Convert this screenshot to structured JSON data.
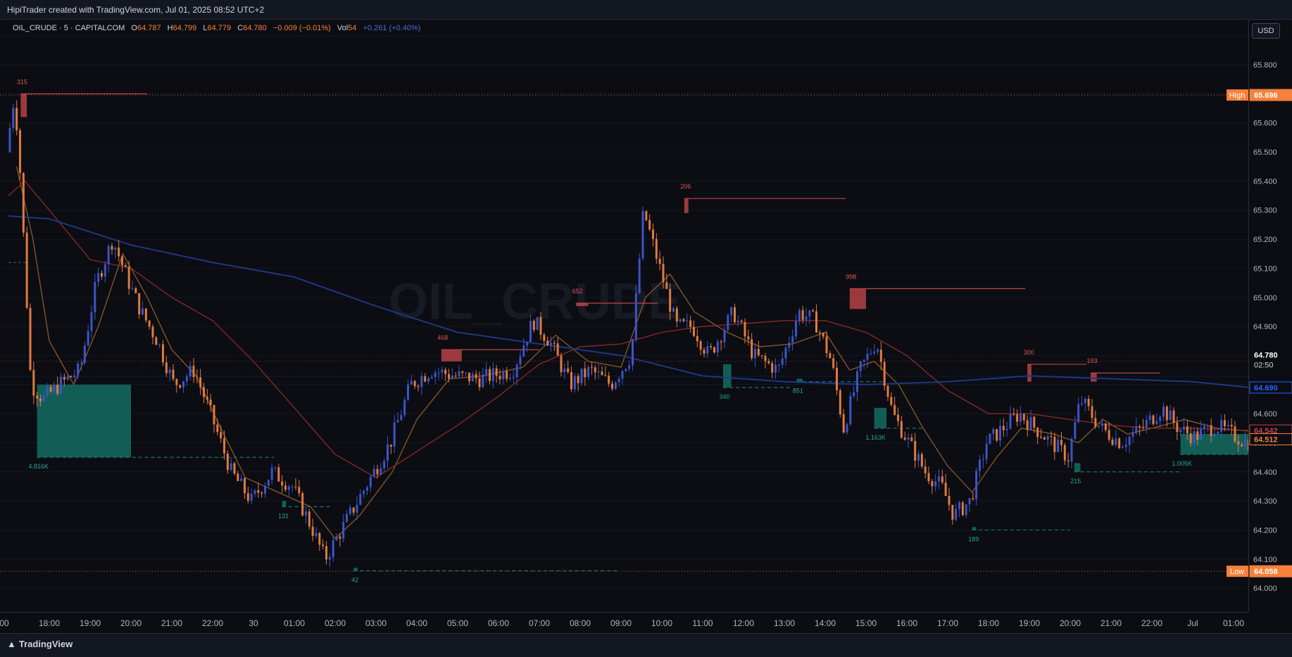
{
  "header": {
    "caption": "HipiTrader created with TradingView.com, Jul 01, 2025 08:52 UTC+2"
  },
  "legend": {
    "symbol": "OIL_CRUDE · 5 · CAPITALCOM",
    "open_label": "O",
    "open": "64.787",
    "high_label": "H",
    "high": "64.799",
    "low_label": "L",
    "low": "64.779",
    "close_label": "C",
    "close": "64.780",
    "change": "−0.009 (−0.01%)",
    "vol_label": "Vol",
    "vol": "54",
    "extra": "+0.261 (+0.40%)"
  },
  "watermark": "OIL_CRUDE",
  "currency_button": "USD",
  "footer": {
    "brand": "TradingView"
  },
  "colors": {
    "background": "#0b0d12",
    "bull": "#3c54c8",
    "bear": "#e07a3e",
    "ema_fast": "#8a5a2b",
    "ema_mid": "#8b2a2a",
    "ema_slow": "#1f3a8a",
    "supply": "#c0454a",
    "demand": "#157a6e",
    "high_low_badge": "#f7803a"
  },
  "chart_data": {
    "type": "candlestick",
    "symbol": "OIL_CRUDE",
    "timeframe": "5",
    "ylim": [
      63.918,
      65.955
    ],
    "y_ticks": [
      65.9,
      65.8,
      65.7,
      65.6,
      65.5,
      65.4,
      65.3,
      65.2,
      65.1,
      65.0,
      64.9,
      64.8,
      64.7,
      64.6,
      64.5,
      64.4,
      64.3,
      64.2,
      64.1,
      64.0
    ],
    "y_tick_labels": [
      "65.900",
      "65.800",
      "65.700",
      "65.600",
      "65.500",
      "65.400",
      "65.300",
      "65.200",
      "65.100",
      "65.000",
      "64.900",
      "64.800",
      "64.700",
      "64.600",
      "64.500",
      "64.400",
      "64.300",
      "64.200",
      "64.100",
      "64.000"
    ],
    "time_ticks": [
      {
        "label": "18:00",
        "at": 1
      },
      {
        "label": "19:00",
        "at": 2
      },
      {
        "label": "20:00",
        "at": 3
      },
      {
        "label": "21:00",
        "at": 4
      },
      {
        "label": "22:00",
        "at": 5
      },
      {
        "label": "30",
        "at": 6
      },
      {
        "label": "01:00",
        "at": 7
      },
      {
        "label": "02:00",
        "at": 8
      },
      {
        "label": "03:00",
        "at": 9
      },
      {
        "label": "04:00",
        "at": 10
      },
      {
        "label": "05:00",
        "at": 11
      },
      {
        "label": "06:00",
        "at": 12
      },
      {
        "label": "07:00",
        "at": 13
      },
      {
        "label": "08:00",
        "at": 14
      },
      {
        "label": "09:00",
        "at": 15
      },
      {
        "label": "10:00",
        "at": 16
      },
      {
        "label": "11:00",
        "at": 17
      },
      {
        "label": "12:00",
        "at": 18
      },
      {
        "label": "13:00",
        "at": 19
      },
      {
        "label": "14:00",
        "at": 20
      },
      {
        "label": "15:00",
        "at": 21
      },
      {
        "label": "16:00",
        "at": 22
      },
      {
        "label": "17:00",
        "at": 23
      },
      {
        "label": "18:00",
        "at": 24
      },
      {
        "label": "19:00",
        "at": 25
      },
      {
        "label": "20:00",
        "at": 26
      },
      {
        "label": "21:00",
        "at": 27
      },
      {
        "label": "22:00",
        "at": 28
      },
      {
        "label": "Jul",
        "at": 29
      },
      {
        "label": "01:00",
        "at": 30
      }
    ],
    "time_axis_partial_label": ":00",
    "price_path": [
      [
        0.0,
        65.5
      ],
      [
        0.2,
        65.7
      ],
      [
        0.35,
        65.4
      ],
      [
        0.6,
        64.7
      ],
      [
        0.9,
        64.65
      ],
      [
        1.3,
        64.7
      ],
      [
        1.8,
        64.75
      ],
      [
        2.2,
        65.05
      ],
      [
        2.6,
        65.2
      ],
      [
        3.0,
        65.05
      ],
      [
        3.3,
        64.95
      ],
      [
        3.7,
        64.85
      ],
      [
        4.1,
        64.7
      ],
      [
        4.6,
        64.75
      ],
      [
        5.0,
        64.6
      ],
      [
        5.5,
        64.4
      ],
      [
        6.0,
        64.3
      ],
      [
        6.5,
        64.4
      ],
      [
        7.0,
        64.35
      ],
      [
        7.5,
        64.2
      ],
      [
        7.8,
        64.1
      ],
      [
        8.2,
        64.2
      ],
      [
        8.8,
        64.35
      ],
      [
        9.4,
        64.5
      ],
      [
        9.9,
        64.7
      ],
      [
        10.4,
        64.75
      ],
      [
        11.0,
        64.73
      ],
      [
        11.6,
        64.72
      ],
      [
        12.4,
        64.75
      ],
      [
        12.9,
        64.92
      ],
      [
        13.3,
        64.85
      ],
      [
        13.8,
        64.7
      ],
      [
        14.3,
        64.75
      ],
      [
        14.8,
        64.7
      ],
      [
        15.3,
        64.8
      ],
      [
        15.6,
        65.3
      ],
      [
        16.0,
        65.1
      ],
      [
        16.4,
        64.9
      ],
      [
        16.8,
        64.9
      ],
      [
        17.2,
        64.8
      ],
      [
        17.8,
        64.95
      ],
      [
        18.3,
        64.8
      ],
      [
        18.9,
        64.75
      ],
      [
        19.4,
        64.95
      ],
      [
        19.8,
        64.92
      ],
      [
        20.2,
        64.78
      ],
      [
        20.5,
        64.55
      ],
      [
        20.9,
        64.75
      ],
      [
        21.3,
        64.85
      ],
      [
        21.7,
        64.6
      ],
      [
        22.1,
        64.5
      ],
      [
        22.5,
        64.4
      ],
      [
        22.9,
        64.35
      ],
      [
        23.2,
        64.25
      ],
      [
        23.6,
        64.3
      ],
      [
        24.0,
        64.5
      ],
      [
        24.4,
        64.55
      ],
      [
        24.8,
        64.6
      ],
      [
        25.2,
        64.55
      ],
      [
        25.6,
        64.5
      ],
      [
        26.0,
        64.45
      ],
      [
        26.3,
        64.65
      ],
      [
        26.8,
        64.55
      ],
      [
        27.3,
        64.5
      ],
      [
        27.8,
        64.55
      ],
      [
        28.3,
        64.62
      ],
      [
        28.7,
        64.55
      ],
      [
        29.1,
        64.52
      ],
      [
        29.6,
        64.56
      ],
      [
        30.0,
        64.53
      ],
      [
        30.4,
        64.5
      ]
    ],
    "series": [
      {
        "name": "EMA fast",
        "color": "#8a5a2b",
        "points": [
          [
            0.2,
            65.45
          ],
          [
            0.6,
            65.2
          ],
          [
            1.0,
            64.85
          ],
          [
            1.6,
            64.7
          ],
          [
            2.2,
            64.9
          ],
          [
            2.8,
            65.15
          ],
          [
            3.4,
            65.0
          ],
          [
            4.0,
            64.82
          ],
          [
            4.6,
            64.73
          ],
          [
            5.2,
            64.55
          ],
          [
            5.8,
            64.38
          ],
          [
            6.6,
            64.33
          ],
          [
            7.4,
            64.28
          ],
          [
            8.0,
            64.17
          ],
          [
            8.6,
            64.25
          ],
          [
            9.4,
            64.4
          ],
          [
            10.0,
            64.58
          ],
          [
            10.8,
            64.72
          ],
          [
            11.6,
            64.73
          ],
          [
            12.6,
            64.76
          ],
          [
            13.4,
            64.87
          ],
          [
            14.2,
            64.78
          ],
          [
            15.0,
            64.76
          ],
          [
            15.6,
            65.0
          ],
          [
            16.2,
            65.08
          ],
          [
            16.8,
            64.95
          ],
          [
            17.6,
            64.88
          ],
          [
            18.4,
            64.83
          ],
          [
            19.2,
            64.84
          ],
          [
            20.0,
            64.88
          ],
          [
            20.6,
            64.75
          ],
          [
            21.2,
            64.78
          ],
          [
            21.8,
            64.7
          ],
          [
            22.4,
            64.55
          ],
          [
            23.0,
            64.42
          ],
          [
            23.6,
            64.33
          ],
          [
            24.2,
            64.45
          ],
          [
            24.8,
            64.55
          ],
          [
            25.6,
            64.53
          ],
          [
            26.2,
            64.5
          ],
          [
            26.8,
            64.58
          ],
          [
            27.4,
            64.53
          ],
          [
            28.0,
            64.55
          ],
          [
            28.8,
            64.58
          ],
          [
            29.6,
            64.55
          ],
          [
            30.4,
            64.54
          ]
        ]
      },
      {
        "name": "EMA mid",
        "color": "#8b2a2a",
        "points": [
          [
            0.0,
            65.35
          ],
          [
            0.4,
            65.4
          ],
          [
            1.0,
            65.3
          ],
          [
            2.0,
            65.13
          ],
          [
            3.0,
            65.1
          ],
          [
            4.0,
            65.0
          ],
          [
            5.0,
            64.92
          ],
          [
            6.0,
            64.78
          ],
          [
            7.0,
            64.62
          ],
          [
            8.0,
            64.46
          ],
          [
            9.0,
            64.38
          ],
          [
            10.0,
            64.47
          ],
          [
            11.0,
            64.56
          ],
          [
            12.0,
            64.66
          ],
          [
            13.0,
            64.77
          ],
          [
            14.0,
            64.83
          ],
          [
            15.0,
            64.84
          ],
          [
            16.0,
            64.88
          ],
          [
            17.0,
            64.9
          ],
          [
            18.0,
            64.91
          ],
          [
            19.0,
            64.92
          ],
          [
            20.0,
            64.92
          ],
          [
            21.0,
            64.88
          ],
          [
            22.0,
            64.8
          ],
          [
            23.0,
            64.68
          ],
          [
            24.0,
            64.6
          ],
          [
            25.0,
            64.6
          ],
          [
            26.0,
            64.58
          ],
          [
            27.0,
            64.56
          ],
          [
            28.0,
            64.55
          ],
          [
            29.0,
            64.55
          ],
          [
            30.4,
            64.542
          ]
        ]
      },
      {
        "name": "EMA slow",
        "color": "#1f3a8a",
        "points": [
          [
            0.0,
            65.28
          ],
          [
            1.0,
            65.27
          ],
          [
            3.0,
            65.18
          ],
          [
            5.0,
            65.12
          ],
          [
            7.0,
            65.07
          ],
          [
            9.0,
            64.97
          ],
          [
            11.0,
            64.88
          ],
          [
            13.0,
            64.84
          ],
          [
            15.0,
            64.8
          ],
          [
            17.0,
            64.73
          ],
          [
            19.0,
            64.71
          ],
          [
            21.0,
            64.7
          ],
          [
            23.0,
            64.71
          ],
          [
            25.0,
            64.73
          ],
          [
            27.0,
            64.72
          ],
          [
            29.0,
            64.71
          ],
          [
            30.4,
            64.69
          ]
        ]
      }
    ],
    "high_line": {
      "label": "High",
      "value": "65.696",
      "y": 65.696,
      "color": "#f7803a"
    },
    "low_line": {
      "label": "Low",
      "value": "64.058",
      "y": 64.058,
      "color": "#f7803a"
    },
    "last_price": {
      "value": "64.780",
      "countdown": "02:50",
      "y": 64.78
    },
    "price_badges": [
      {
        "value": "64.690",
        "y": 64.69,
        "color": "#2962ff",
        "fill": "#0b0d12"
      },
      {
        "value": "64.542",
        "y": 64.542,
        "color": "#c0454a",
        "fill": "#0b0d12"
      },
      {
        "value": "64.512",
        "y": 64.512,
        "color": "#f7803a",
        "fill": "#0b0d12"
      }
    ],
    "supply_zones": [
      {
        "label": "315",
        "x1": 0.3,
        "x2": 3.4,
        "y_top": 65.7,
        "y_bottom": 65.62,
        "box_x2": 0.45
      },
      {
        "label": "468",
        "x1": 10.6,
        "x2": 13.0,
        "y_top": 64.82,
        "y_bottom": 64.78,
        "box_x2": 11.1
      },
      {
        "label": "652",
        "x1": 13.9,
        "x2": 15.9,
        "y_top": 64.98,
        "y_bottom": 64.97,
        "box_x2": 14.2
      },
      {
        "label": "206",
        "x1": 16.55,
        "x2": 20.5,
        "y_top": 65.34,
        "y_bottom": 65.29,
        "box_x2": 16.65
      },
      {
        "label": "998",
        "x1": 20.6,
        "x2": 24.9,
        "y_top": 65.03,
        "y_bottom": 64.96,
        "box_x2": 21.0
      },
      {
        "label": "300",
        "x1": 24.95,
        "x2": 26.4,
        "y_top": 64.77,
        "y_bottom": 64.71,
        "box_x2": 25.05
      },
      {
        "label": "193",
        "x1": 26.5,
        "x2": 28.2,
        "y_top": 64.74,
        "y_bottom": 64.71,
        "box_x2": 26.65
      }
    ],
    "demand_zones": [
      {
        "label": "4.816K",
        "x1": 0.7,
        "x2": 6.5,
        "y_top": 64.7,
        "y_bottom": 64.45,
        "box_x2": 3.0
      },
      {
        "label": "131",
        "x1": 6.7,
        "x2": 7.9,
        "y_top": 64.3,
        "y_bottom": 64.28,
        "box_x2": 6.8
      },
      {
        "label": "42",
        "x1": 8.45,
        "x2": 14.95,
        "y_top": 64.07,
        "y_bottom": 64.06,
        "box_x2": 8.55
      },
      {
        "label": "340",
        "x1": 17.5,
        "x2": 19.2,
        "y_top": 64.77,
        "y_bottom": 64.69,
        "box_x2": 17.7
      },
      {
        "label": "851",
        "x1": 19.3,
        "x2": 21.4,
        "y_top": 64.72,
        "y_bottom": 64.71,
        "box_x2": 19.45
      },
      {
        "label": "1.163K",
        "x1": 21.2,
        "x2": 22.4,
        "y_top": 64.62,
        "y_bottom": 64.55,
        "box_x2": 21.5
      },
      {
        "label": "189",
        "x1": 23.6,
        "x2": 26.0,
        "y_top": 64.21,
        "y_bottom": 64.2,
        "box_x2": 23.7
      },
      {
        "label": "215",
        "x1": 26.1,
        "x2": 28.7,
        "y_top": 64.43,
        "y_bottom": 64.4,
        "box_x2": 26.25
      },
      {
        "label": "1.005K",
        "x1": 28.7,
        "x2": 30.4,
        "y_top": 64.53,
        "y_bottom": 64.46,
        "box_x2": 30.4
      }
    ],
    "mid_marker": {
      "y": 65.12
    }
  }
}
